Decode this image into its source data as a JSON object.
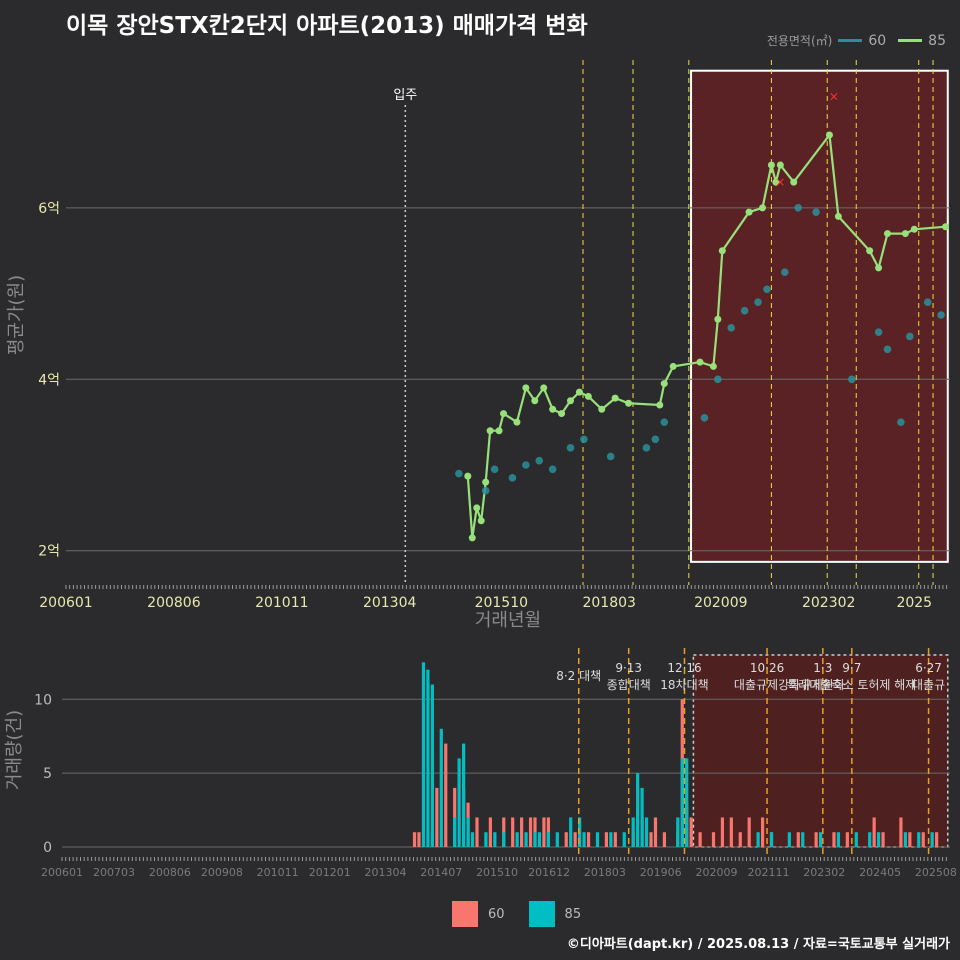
{
  "title": "이목 장안STX칸2단지 아파트(2013) 매매가격 변화",
  "footer": "©디아파트(dapt.kr) / 2025.08.13 / 자료=국토교통부 실거래가",
  "legend_top": {
    "title": "전용면적(㎡)",
    "items": [
      {
        "name": "60",
        "color": "#2a8f9a"
      },
      {
        "name": "85",
        "color": "#98e07a"
      }
    ]
  },
  "legend_bottom": {
    "items": [
      {
        "name": "60",
        "color": "#f8766d"
      },
      {
        "name": "85",
        "color": "#00bfc4"
      }
    ]
  },
  "chart_data": [
    {
      "type": "line",
      "title": "이목 장안STX칸2단지 아파트(2013) 매매가격 변화",
      "xlabel": "거래년월",
      "ylabel": "평균가(원)",
      "x_ticks": [
        "200601",
        "200806",
        "201011",
        "201304",
        "201510",
        "201803",
        "202009",
        "202302",
        "2025"
      ],
      "y_ticks": [
        {
          "label": "2억",
          "value": 2
        },
        {
          "label": "4억",
          "value": 4
        },
        {
          "label": "6억",
          "value": 6
        }
      ],
      "ylim_eok": [
        1.6,
        7.9
      ],
      "xlim_year": [
        2006.0,
        2025.8
      ],
      "grid": true,
      "legend_position": "top-right",
      "annotations": {
        "occupancy": {
          "label": "입주",
          "x": 2013.6
        },
        "highlight_box": {
          "x0": 2020.0,
          "x1": 2025.75,
          "y0": 1.87,
          "y1": 7.6
        }
      },
      "policy_lines": [
        2017.58,
        2018.7,
        2019.95,
        2021.8,
        2023.05,
        2023.7,
        2025.1,
        2025.42
      ],
      "series": [
        {
          "name": "85",
          "type": "line",
          "color": "#98e07a",
          "points": [
            [
              2015.0,
              2.87
            ],
            [
              2015.1,
              2.15
            ],
            [
              2015.2,
              2.5
            ],
            [
              2015.3,
              2.35
            ],
            [
              2015.4,
              2.8
            ],
            [
              2015.5,
              3.4
            ],
            [
              2015.7,
              3.4
            ],
            [
              2015.8,
              3.6
            ],
            [
              2016.1,
              3.5
            ],
            [
              2016.3,
              3.9
            ],
            [
              2016.5,
              3.75
            ],
            [
              2016.7,
              3.9
            ],
            [
              2016.9,
              3.65
            ],
            [
              2017.1,
              3.6
            ],
            [
              2017.3,
              3.75
            ],
            [
              2017.5,
              3.85
            ],
            [
              2017.7,
              3.8
            ],
            [
              2018.0,
              3.65
            ],
            [
              2018.3,
              3.78
            ],
            [
              2018.6,
              3.72
            ],
            [
              2019.3,
              3.7
            ],
            [
              2019.4,
              3.95
            ],
            [
              2019.6,
              4.15
            ],
            [
              2020.2,
              4.2
            ],
            [
              2020.5,
              4.15
            ],
            [
              2020.6,
              4.7
            ],
            [
              2020.7,
              5.5
            ],
            [
              2021.3,
              5.95
            ],
            [
              2021.6,
              6.0
            ],
            [
              2021.8,
              6.5
            ],
            [
              2021.9,
              6.3
            ],
            [
              2022.0,
              6.5
            ],
            [
              2022.3,
              6.3
            ],
            [
              2023.1,
              6.85
            ],
            [
              2023.3,
              5.9
            ],
            [
              2024.0,
              5.5
            ],
            [
              2024.2,
              5.3
            ],
            [
              2024.4,
              5.7
            ],
            [
              2024.8,
              5.7
            ],
            [
              2025.0,
              5.75
            ],
            [
              2025.7,
              5.78
            ]
          ]
        },
        {
          "name": "60",
          "type": "scatter",
          "color": "#2a8f9a",
          "points": [
            [
              2014.8,
              2.9
            ],
            [
              2015.4,
              2.7
            ],
            [
              2015.6,
              2.95
            ],
            [
              2016.0,
              2.85
            ],
            [
              2016.3,
              3.0
            ],
            [
              2016.6,
              3.05
            ],
            [
              2016.9,
              2.95
            ],
            [
              2017.3,
              3.2
            ],
            [
              2017.6,
              3.3
            ],
            [
              2018.2,
              3.1
            ],
            [
              2019.0,
              3.2
            ],
            [
              2019.2,
              3.3
            ],
            [
              2019.4,
              3.5
            ],
            [
              2020.3,
              3.55
            ],
            [
              2020.6,
              4.0
            ],
            [
              2020.9,
              4.6
            ],
            [
              2021.2,
              4.8
            ],
            [
              2021.5,
              4.9
            ],
            [
              2021.7,
              5.05
            ],
            [
              2022.1,
              5.25
            ],
            [
              2022.4,
              6.0
            ],
            [
              2022.8,
              5.95
            ],
            [
              2023.6,
              4.0
            ],
            [
              2024.2,
              4.55
            ],
            [
              2024.4,
              4.35
            ],
            [
              2024.7,
              3.5
            ],
            [
              2024.9,
              4.5
            ],
            [
              2025.3,
              4.9
            ],
            [
              2025.6,
              4.75
            ]
          ]
        },
        {
          "name": "취소",
          "type": "marker",
          "color": "#ff3030",
          "points": [
            [
              2022.0,
              6.3
            ],
            [
              2023.2,
              7.3
            ]
          ]
        }
      ]
    },
    {
      "type": "bar",
      "ylabel": "거래량(건)",
      "y_ticks": [
        0,
        5,
        10
      ],
      "ylim": [
        0,
        13.2
      ],
      "x_ticks": [
        "200601",
        "200703",
        "200806",
        "200908",
        "201011",
        "201201",
        "201304",
        "201407",
        "201510",
        "201612",
        "201803",
        "201906",
        "202009",
        "202111",
        "202302",
        "202405",
        "202508"
      ],
      "series": [
        {
          "name": "60",
          "color": "#f8766d",
          "values": [
            [
              2013.9,
              1
            ],
            [
              2014.0,
              1
            ],
            [
              2014.3,
              1
            ],
            [
              2014.4,
              4
            ],
            [
              2014.6,
              7
            ],
            [
              2014.8,
              4
            ],
            [
              2015.0,
              4
            ],
            [
              2015.1,
              3
            ],
            [
              2015.3,
              2
            ],
            [
              2015.6,
              2
            ],
            [
              2015.9,
              2
            ],
            [
              2016.1,
              2
            ],
            [
              2016.3,
              2
            ],
            [
              2016.5,
              2
            ],
            [
              2016.6,
              2
            ],
            [
              2016.8,
              2
            ],
            [
              2016.9,
              2
            ],
            [
              2017.3,
              1
            ],
            [
              2017.5,
              1
            ],
            [
              2017.8,
              1
            ],
            [
              2018.2,
              1
            ],
            [
              2018.4,
              1
            ],
            [
              2018.8,
              1
            ],
            [
              2019.0,
              2
            ],
            [
              2019.2,
              1
            ],
            [
              2019.3,
              2
            ],
            [
              2019.5,
              1
            ],
            [
              2019.8,
              1
            ],
            [
              2019.9,
              10
            ],
            [
              2020.0,
              3
            ],
            [
              2020.1,
              2
            ],
            [
              2020.3,
              1
            ],
            [
              2020.6,
              1
            ],
            [
              2020.8,
              2
            ],
            [
              2021.0,
              2
            ],
            [
              2021.2,
              1
            ],
            [
              2021.4,
              2
            ],
            [
              2021.7,
              2
            ],
            [
              2021.9,
              1
            ],
            [
              2022.5,
              1
            ],
            [
              2022.9,
              1
            ],
            [
              2023.3,
              1
            ],
            [
              2023.6,
              1
            ],
            [
              2024.2,
              2
            ],
            [
              2024.4,
              1
            ],
            [
              2024.8,
              2
            ],
            [
              2025.0,
              1
            ],
            [
              2025.3,
              1
            ],
            [
              2025.6,
              1
            ]
          ]
        },
        {
          "name": "85",
          "color": "#00bfc4",
          "values": [
            [
              2014.1,
              12.5
            ],
            [
              2014.2,
              12
            ],
            [
              2014.3,
              11
            ],
            [
              2014.5,
              8
            ],
            [
              2014.8,
              2
            ],
            [
              2014.9,
              6
            ],
            [
              2015.0,
              7
            ],
            [
              2015.1,
              2
            ],
            [
              2015.2,
              1
            ],
            [
              2015.5,
              1
            ],
            [
              2015.7,
              1
            ],
            [
              2015.9,
              1
            ],
            [
              2016.2,
              1
            ],
            [
              2016.4,
              1
            ],
            [
              2016.6,
              1
            ],
            [
              2016.7,
              1
            ],
            [
              2016.9,
              1
            ],
            [
              2017.1,
              1
            ],
            [
              2017.4,
              2
            ],
            [
              2017.6,
              2
            ],
            [
              2017.7,
              1
            ],
            [
              2018.0,
              1
            ],
            [
              2018.3,
              1
            ],
            [
              2018.6,
              1
            ],
            [
              2018.8,
              2
            ],
            [
              2018.9,
              5
            ],
            [
              2019.0,
              4
            ],
            [
              2019.1,
              2
            ],
            [
              2019.8,
              2
            ],
            [
              2019.9,
              6
            ],
            [
              2020.0,
              6
            ],
            [
              2021.6,
              1
            ],
            [
              2021.9,
              1
            ],
            [
              2022.3,
              1
            ],
            [
              2022.6,
              1
            ],
            [
              2023.0,
              1
            ],
            [
              2023.4,
              1
            ],
            [
              2023.8,
              1
            ],
            [
              2024.1,
              1
            ],
            [
              2024.3,
              1
            ],
            [
              2024.9,
              1
            ],
            [
              2025.2,
              1
            ],
            [
              2025.5,
              1
            ]
          ]
        }
      ],
      "policy_labels": [
        {
          "x": 2017.58,
          "lines": [
            "8·2 대책"
          ]
        },
        {
          "x": 2018.7,
          "lines": [
            "9·13",
            "종합대책"
          ]
        },
        {
          "x": 2019.95,
          "lines": [
            "12·16",
            "18차대책"
          ]
        },
        {
          "x": 2021.8,
          "lines": [
            "10·26",
            "대출규제강화"
          ]
        },
        {
          "x": 2023.05,
          "lines": [
            "1·3",
            "규제완화"
          ]
        },
        {
          "x": 2023.7,
          "lines": [
            "9·7",
            "특례대출축소 토허제 해제"
          ]
        },
        {
          "x": 2025.42,
          "lines": [
            "6·27",
            "대출규"
          ]
        }
      ]
    }
  ]
}
